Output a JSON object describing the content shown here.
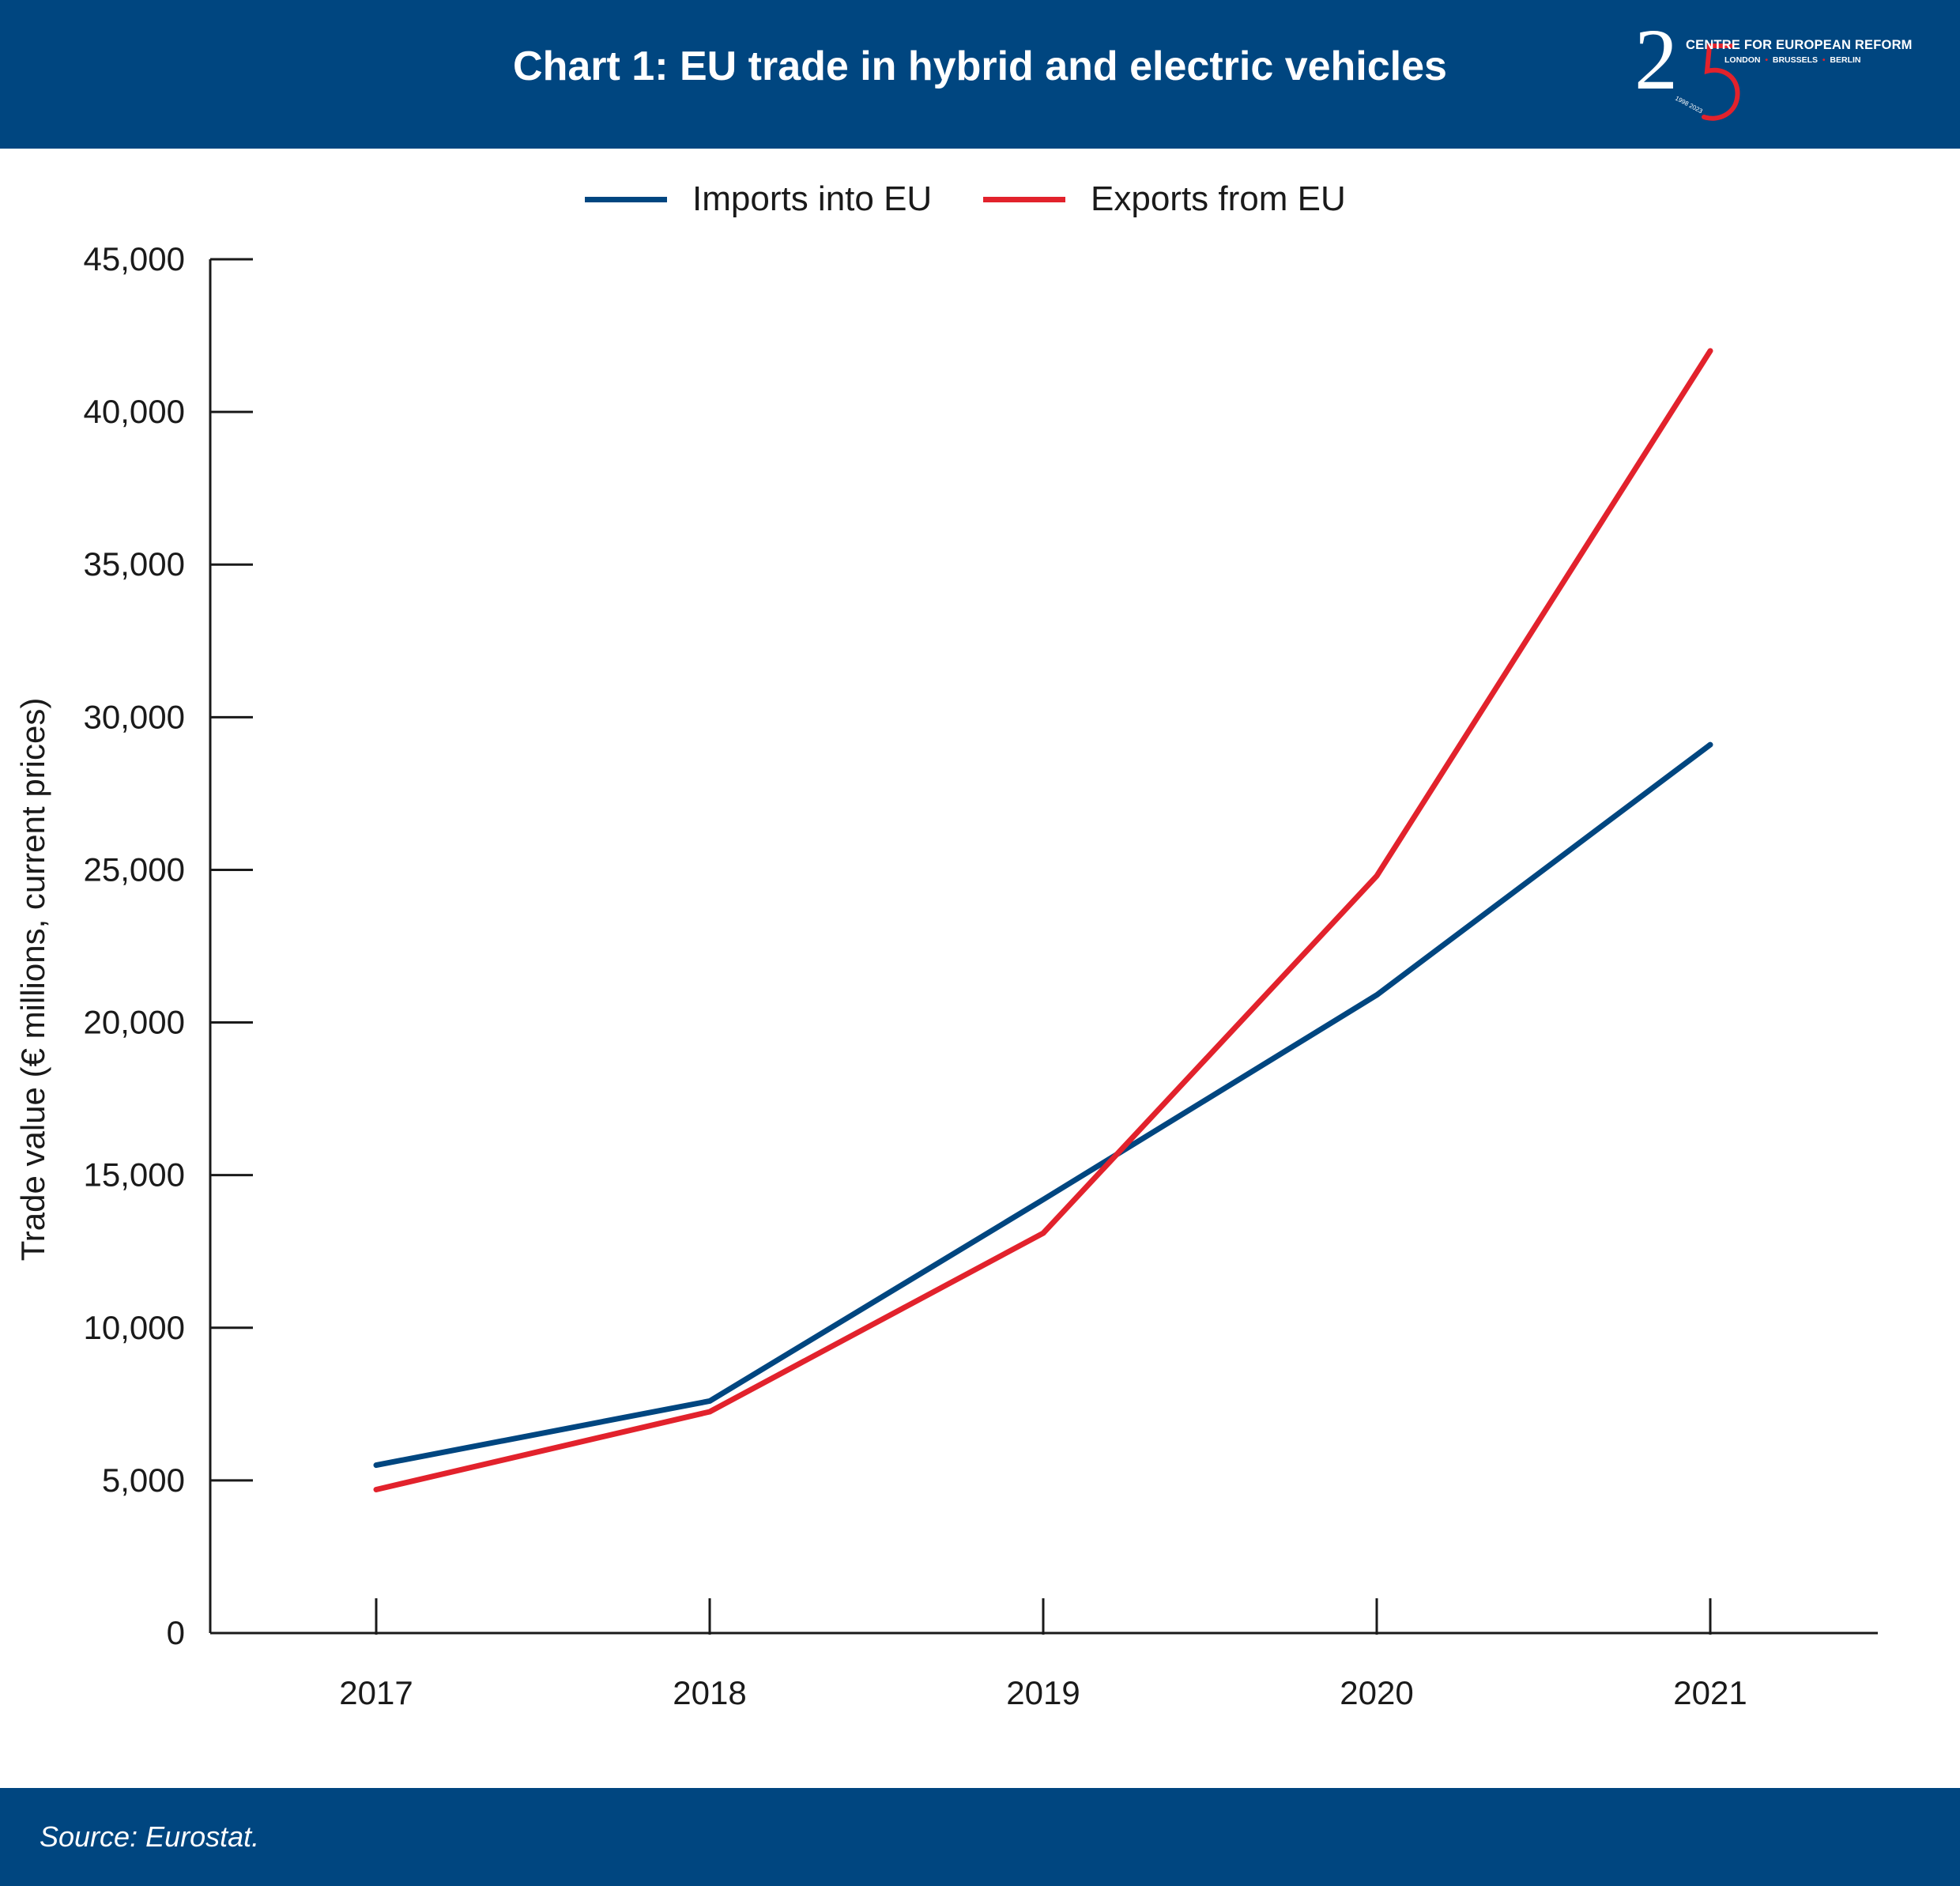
{
  "header": {
    "title": "Chart 1: EU trade in hybrid and electric vehicles",
    "logo": {
      "name": "CENTRE FOR EUROPEAN REFORM",
      "cities": [
        "LONDON",
        "BRUSSELS",
        "BERLIN"
      ],
      "numeral_two": "2",
      "years": "1998 2023",
      "icon": "cer-25-anniversary-logo"
    }
  },
  "footer": {
    "source": "Source: Eurostat."
  },
  "colors": {
    "imports": "#004680",
    "exports": "#e2222c",
    "band": "#004680"
  },
  "chart_data": {
    "type": "line",
    "title": "Chart 1: EU trade in hybrid and electric vehicles",
    "xlabel": "",
    "ylabel": "Trade value (€ millions, current prices)",
    "x": [
      "2017",
      "2018",
      "2019",
      "2020",
      "2021"
    ],
    "ylim": [
      0,
      45000
    ],
    "yticks": [
      0,
      5000,
      10000,
      15000,
      20000,
      25000,
      30000,
      35000,
      40000,
      45000
    ],
    "ytick_labels": [
      "0",
      "5,000",
      "10,000",
      "15,000",
      "20,000",
      "25,000",
      "30,000",
      "35,000",
      "40,000",
      "45,000"
    ],
    "grid": false,
    "legend": "top-center",
    "series": [
      {
        "name": "Imports into EU",
        "key": "imports",
        "values": [
          5500,
          7600,
          14200,
          20900,
          29100
        ]
      },
      {
        "name": "Exports from EU",
        "key": "exports",
        "values": [
          4700,
          7250,
          13100,
          24800,
          42000
        ]
      }
    ]
  }
}
